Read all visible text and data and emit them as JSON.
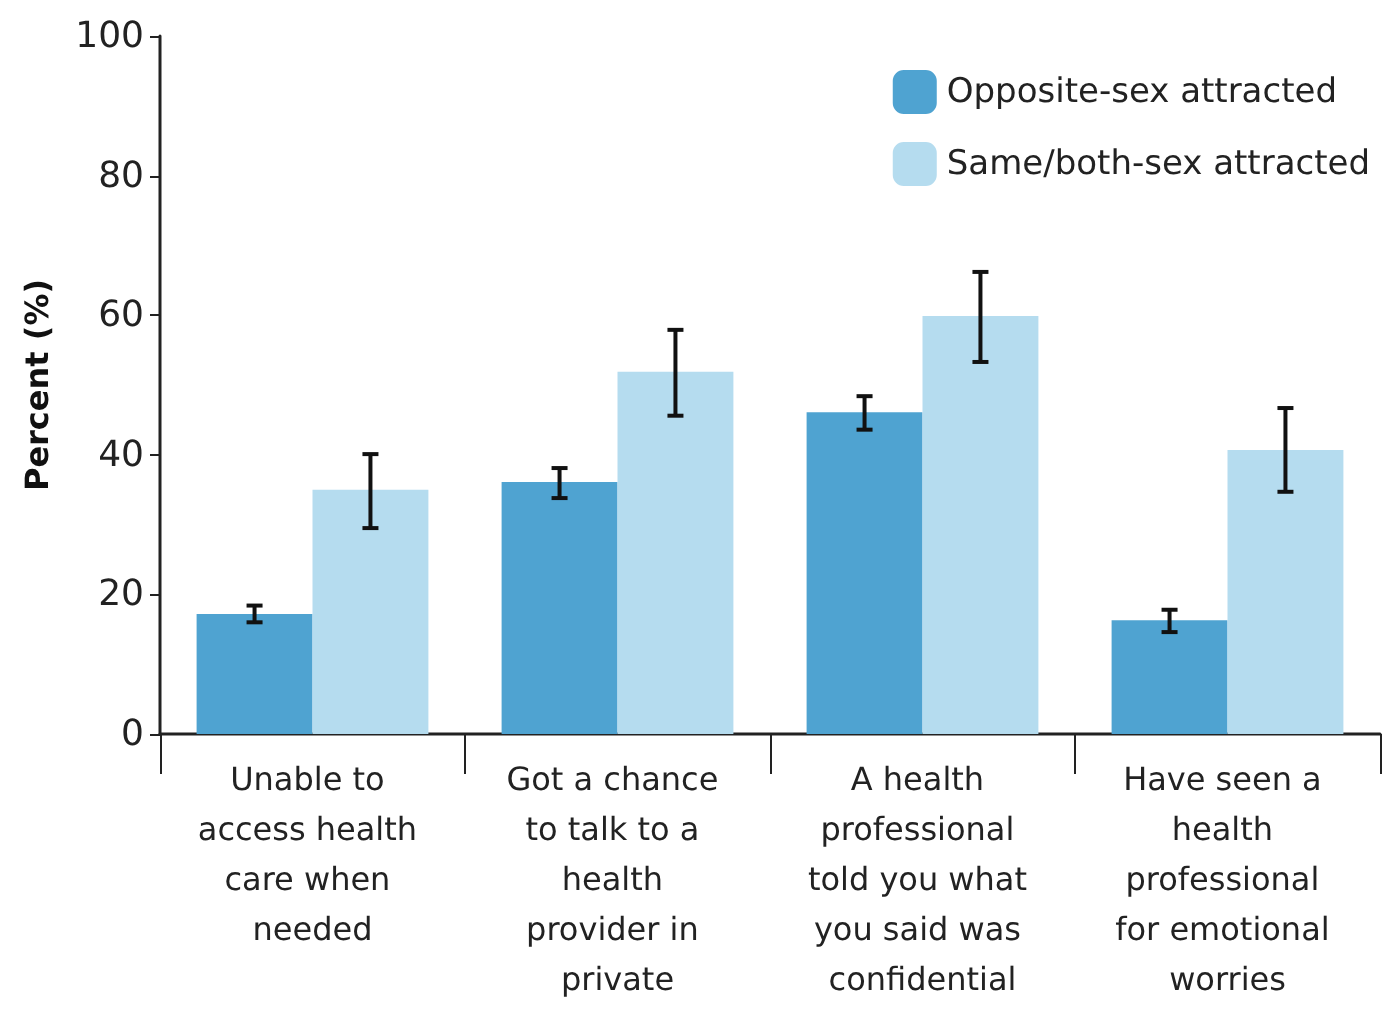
{
  "chart_data": {
    "type": "bar",
    "ylabel": "Percent (%)",
    "categories": [
      "Unable to access health care when needed",
      "Got a chance to talk to a health provider in private",
      "A health professional told you what you said was confidential",
      "Have seen a health professional for emotional worries"
    ],
    "series": [
      {
        "name": "Opposite-sex attracted",
        "color": "#4fa3d1",
        "values": [
          17.2,
          36.1,
          46.1,
          16.3
        ],
        "errors": [
          [
            16.0,
            18.4
          ],
          [
            33.8,
            38.1
          ],
          [
            43.6,
            48.4
          ],
          [
            14.6,
            17.8
          ]
        ]
      },
      {
        "name": "Same/both-sex attracted",
        "color": "#b5dcef",
        "values": [
          35.0,
          51.9,
          59.9,
          40.7
        ],
        "errors": [
          [
            29.5,
            40.1
          ],
          [
            45.6,
            57.9
          ],
          [
            53.3,
            66.2
          ],
          [
            34.7,
            46.7
          ]
        ]
      }
    ],
    "ylim": [
      0,
      100
    ],
    "yticks": [
      0,
      20,
      40,
      60,
      80,
      100
    ],
    "grid": false,
    "legend": "top right"
  }
}
